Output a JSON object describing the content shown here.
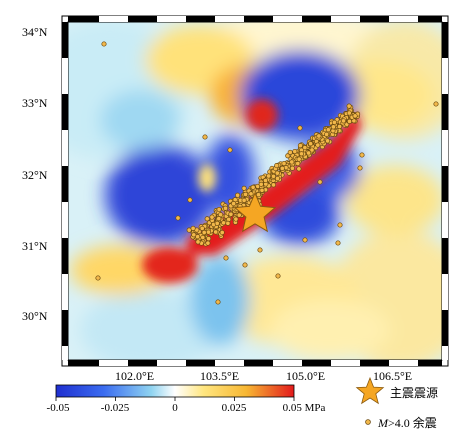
{
  "map": {
    "lat_labels": [
      "34°N",
      "33°N",
      "32°N",
      "31°N",
      "30°N"
    ],
    "lon_labels": [
      "102.0°E",
      "103.5°E",
      "105.0°E",
      "106.5°E"
    ],
    "colors": {
      "negative": "#2b3fd6",
      "neutral": "#f7f7f7",
      "positive": "#e31a1c",
      "aftershock_fill": "#f2b84b",
      "aftershock_stroke": "#6b4a10",
      "mainshock": "#f5a623"
    }
  },
  "colorbar": {
    "ticks": [
      "-0.05",
      "-0.025",
      "0",
      "0.025",
      "0.05 MPa"
    ],
    "range": [
      -0.05,
      0.05
    ],
    "stops": [
      "#1f2fd0",
      "#3b6cf0",
      "#8fd3f0",
      "#ffffff",
      "#ffe680",
      "#f7b733",
      "#e31a1c"
    ]
  },
  "legend": {
    "mainshock_label": "主震震源",
    "aftershock_label_italic": "M",
    "aftershock_label_rest": ">4.0 余震"
  }
}
